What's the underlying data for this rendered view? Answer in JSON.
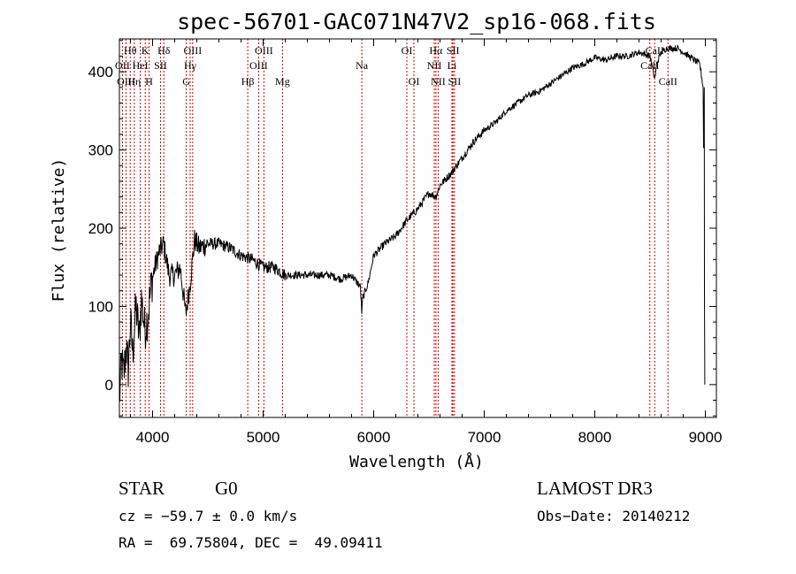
{
  "chart_data": {
    "type": "line",
    "title": "spec-56701-GAC071N47V2_sp16-068.fits",
    "xlabel": "Wavelength (Å)",
    "ylabel": "Flux (relative)",
    "xlim": [
      3700,
      9100
    ],
    "ylim": [
      -42,
      442
    ],
    "xticks": [
      4000,
      5000,
      6000,
      7000,
      8000,
      9000
    ],
    "yticks": [
      0,
      100,
      200,
      300,
      400
    ],
    "series": [
      {
        "name": "flux",
        "x": [
          3700,
          3720,
          3740,
          3760,
          3780,
          3800,
          3820,
          3850,
          3880,
          3900,
          3930,
          3960,
          3990,
          4020,
          4060,
          4100,
          4150,
          4200,
          4250,
          4300,
          4340,
          4380,
          4420,
          4500,
          4600,
          4700,
          4800,
          4900,
          5000,
          5100,
          5200,
          5300,
          5400,
          5500,
          5600,
          5700,
          5800,
          5880,
          5893,
          5900,
          5950,
          6000,
          6100,
          6200,
          6300,
          6400,
          6500,
          6563,
          6600,
          6700,
          6800,
          6900,
          7000,
          7100,
          7200,
          7300,
          7400,
          7500,
          7600,
          7700,
          7800,
          7900,
          8000,
          8100,
          8200,
          8300,
          8400,
          8500,
          8542,
          8560,
          8600,
          8650,
          8700,
          8750,
          8800,
          8850,
          8900,
          8950,
          8980,
          9000
        ],
        "y": [
          -20,
          30,
          10,
          50,
          20,
          80,
          40,
          100,
          60,
          110,
          70,
          90,
          130,
          150,
          170,
          180,
          140,
          140,
          150,
          90,
          130,
          185,
          175,
          180,
          180,
          175,
          165,
          160,
          150,
          150,
          140,
          140,
          140,
          140,
          140,
          135,
          140,
          125,
          90,
          110,
          130,
          165,
          180,
          190,
          210,
          225,
          245,
          240,
          255,
          270,
          290,
          310,
          325,
          335,
          350,
          360,
          370,
          375,
          385,
          395,
          405,
          410,
          418,
          415,
          420,
          420,
          425,
          420,
          390,
          410,
          425,
          430,
          430,
          430,
          425,
          420,
          415,
          410,
          380,
          0
        ]
      }
    ],
    "spectral_lines": [
      {
        "name": "Hθ",
        "wavelength": 3798,
        "row": 1
      },
      {
        "name": "OII",
        "wavelength": 3727,
        "row": 2
      },
      {
        "name": "OIII",
        "wavelength": 3760,
        "row": 3
      },
      {
        "name": "K",
        "wavelength": 3934,
        "row": 1
      },
      {
        "name": "HeI",
        "wavelength": 3889,
        "row": 2
      },
      {
        "name": "Hη",
        "wavelength": 3835,
        "row": 3
      },
      {
        "name": "Hδ",
        "wavelength": 4102,
        "row": 1
      },
      {
        "name": "SII",
        "wavelength": 4072,
        "row": 2
      },
      {
        "name": "H",
        "wavelength": 3969,
        "row": 3
      },
      {
        "name": "OIII",
        "wavelength": 4363,
        "row": 1
      },
      {
        "name": "Hγ",
        "wavelength": 4340,
        "row": 2
      },
      {
        "name": "G",
        "wavelength": 4305,
        "row": 3
      },
      {
        "name": "OIII",
        "wavelength": 5007,
        "row": 1
      },
      {
        "name": "OIII",
        "wavelength": 4959,
        "row": 2
      },
      {
        "name": "Hβ",
        "wavelength": 4861,
        "row": 3
      },
      {
        "name": "Mg",
        "wavelength": 5175,
        "row": 3
      },
      {
        "name": "Na",
        "wavelength": 5893,
        "row": 2
      },
      {
        "name": "OI",
        "wavelength": 6300,
        "row": 1
      },
      {
        "name": "OI",
        "wavelength": 6364,
        "row": 3
      },
      {
        "name": "Hα",
        "wavelength": 6563,
        "row": 1
      },
      {
        "name": "SII",
        "wavelength": 6717,
        "row": 1
      },
      {
        "name": "NII",
        "wavelength": 6548,
        "row": 2
      },
      {
        "name": "Li",
        "wavelength": 6708,
        "row": 2
      },
      {
        "name": "NII",
        "wavelength": 6583,
        "row": 3
      },
      {
        "name": "SII",
        "wavelength": 6731,
        "row": 3
      },
      {
        "name": "CaII",
        "wavelength": 8542,
        "row": 1
      },
      {
        "name": "CaII",
        "wavelength": 8498,
        "row": 2
      },
      {
        "name": "CaII",
        "wavelength": 8662,
        "row": 3
      }
    ]
  },
  "info": {
    "object_class": "STAR",
    "subclass": "G0",
    "survey": "LAMOST DR3",
    "cz": "cz = −59.7 ± 0.0 km/s",
    "obs_date": "Obs−Date: 20140212",
    "coords": "RA =  69.75804, DEC =  49.09411"
  },
  "colors": {
    "axis": "#000000",
    "spectrum": "#000000",
    "line_markers": "#cc0000",
    "background": "#ffffff"
  }
}
